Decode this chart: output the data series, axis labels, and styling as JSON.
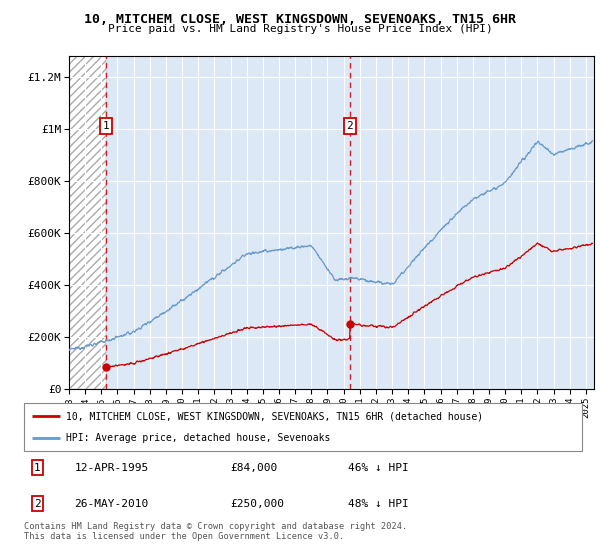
{
  "title1": "10, MITCHEM CLOSE, WEST KINGSDOWN, SEVENOAKS, TN15 6HR",
  "title2": "Price paid vs. HM Land Registry's House Price Index (HPI)",
  "sale1_date_num": 1995.28,
  "sale1_price": 84000,
  "sale1_date_str": "12-APR-1995",
  "sale1_pct": "46% ↓ HPI",
  "sale2_date_num": 2010.39,
  "sale2_price": 250000,
  "sale2_date_str": "26-MAY-2010",
  "sale2_pct": "48% ↓ HPI",
  "xmin": 1993.0,
  "xmax": 2025.5,
  "ymin": 0,
  "ymax": 1280000,
  "hatch_end": 1995.28,
  "legend_line1": "10, MITCHEM CLOSE, WEST KINGSDOWN, SEVENOAKS, TN15 6HR (detached house)",
  "legend_line2": "HPI: Average price, detached house, Sevenoaks",
  "footer": "Contains HM Land Registry data © Crown copyright and database right 2024.\nThis data is licensed under the Open Government Licence v3.0.",
  "red_color": "#cc0000",
  "blue_color": "#6699cc",
  "bg_color": "#dce8f5",
  "hatch_bg": "#e8e8e8"
}
